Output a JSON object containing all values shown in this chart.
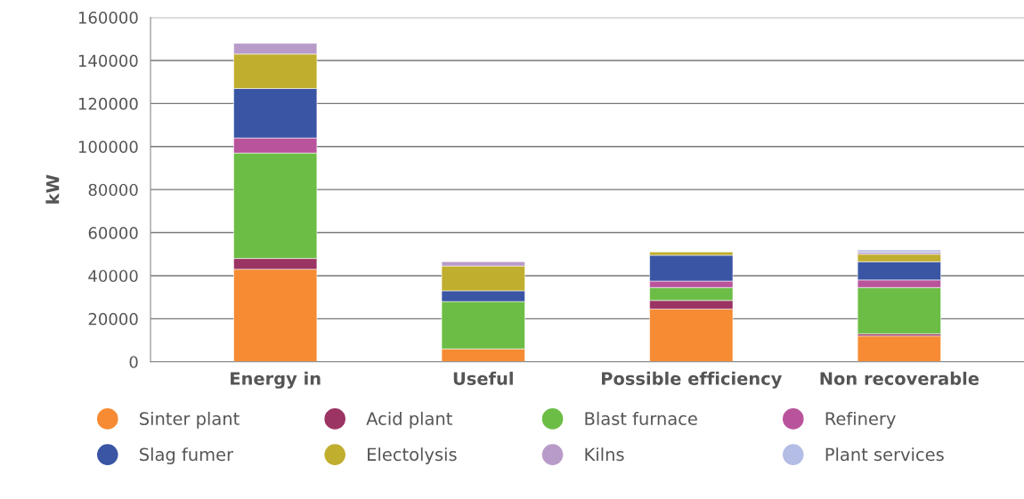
{
  "chart_data": {
    "type": "bar",
    "stacked": true,
    "ylabel": "kW",
    "categories": [
      "Energy in",
      "Useful",
      "Possible efficiency",
      "Non recoverable"
    ],
    "series": [
      {
        "name": "Sinter plant",
        "color": "#f68b33",
        "values": [
          43000,
          6000,
          24500,
          12000
        ]
      },
      {
        "name": "Acid plant",
        "color": "#9b3463",
        "values": [
          5000,
          null,
          4000,
          1000
        ]
      },
      {
        "name": "Blast furnace",
        "color": "#6cbd45",
        "values": [
          49000,
          22000,
          6000,
          21500
        ]
      },
      {
        "name": "Refinery",
        "color": "#b9549c",
        "values": [
          7000,
          null,
          3000,
          3500
        ]
      },
      {
        "name": "Slag fumer",
        "color": "#3a55a4",
        "values": [
          23000,
          5000,
          12000,
          8500
        ]
      },
      {
        "name": "Electolysis",
        "color": "#c0ae2e",
        "values": [
          16000,
          11500,
          1500,
          3500
        ]
      },
      {
        "name": "Kilns",
        "color": "#b99bc9",
        "values": [
          5000,
          2000,
          null,
          1000
        ]
      },
      {
        "name": "Plant services",
        "color": "#b3bde6",
        "values": [
          null,
          null,
          null,
          1000
        ]
      }
    ],
    "ylim": [
      0,
      160000
    ],
    "yticks": [
      0,
      20000,
      40000,
      60000,
      80000,
      100000,
      120000,
      140000,
      160000
    ],
    "grid": "y",
    "legend": "bottom"
  }
}
